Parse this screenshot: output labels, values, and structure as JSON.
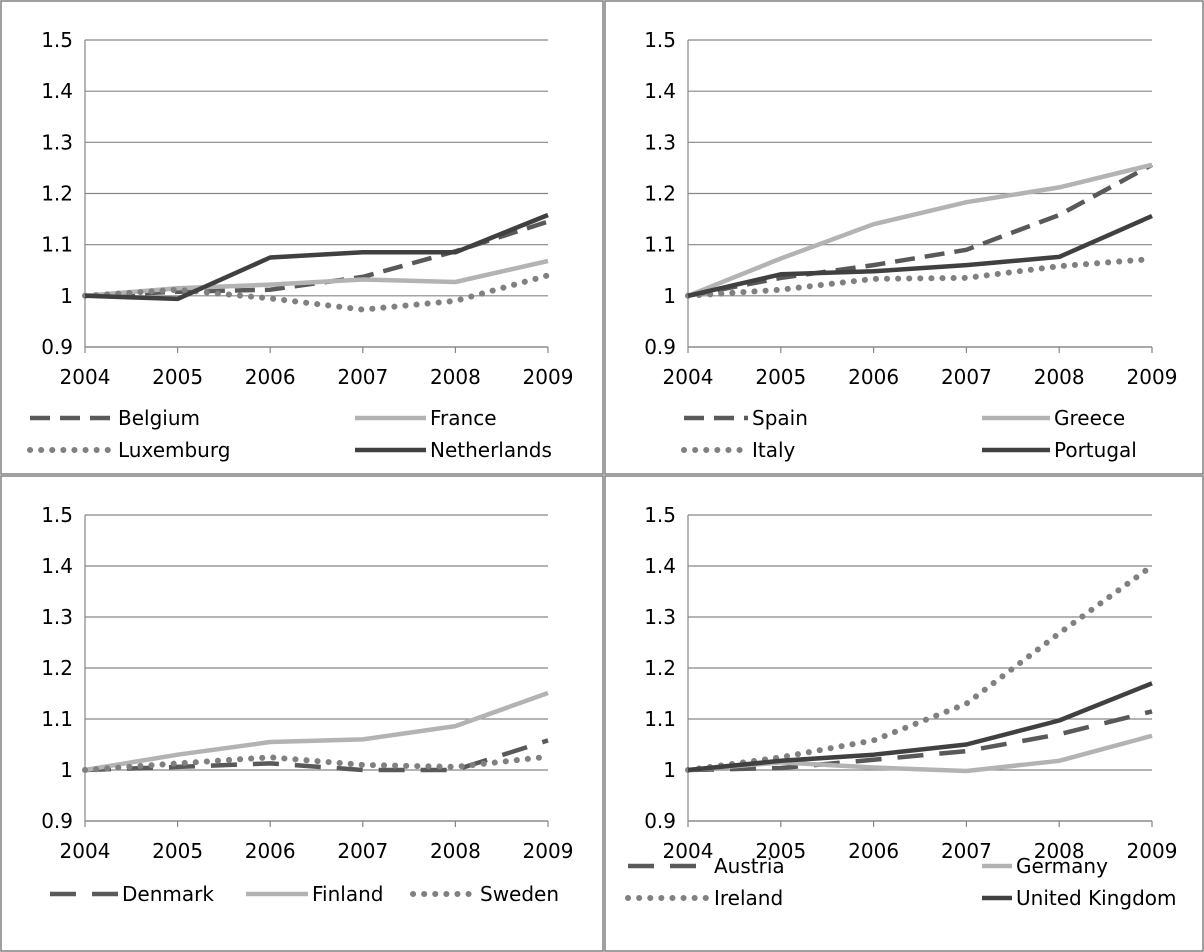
{
  "chart_data": [
    {
      "type": "line",
      "x": [
        "2004",
        "2005",
        "2006",
        "2007",
        "2008",
        "2009"
      ],
      "ylim": [
        0.9,
        1.5
      ],
      "yticks": [
        "0.9",
        "1",
        "1.1",
        "1.2",
        "1.3",
        "1.4",
        "1.5"
      ],
      "grid": true,
      "legend_position": "bottom",
      "legend_columns": 2,
      "series": [
        {
          "name": "Belgium",
          "style": "dashed",
          "color": "#595959",
          "values": [
            1.0,
            1.008,
            1.012,
            1.037,
            1.087,
            1.145
          ]
        },
        {
          "name": "France",
          "style": "solid",
          "color": "#b3b3b3",
          "values": [
            1.0,
            1.015,
            1.022,
            1.032,
            1.027,
            1.068
          ]
        },
        {
          "name": "Luxemburg",
          "style": "dotted",
          "color": "#808080",
          "values": [
            1.0,
            1.012,
            0.995,
            0.973,
            0.99,
            1.04
          ]
        },
        {
          "name": "Netherlands",
          "style": "solid",
          "color": "#404040",
          "values": [
            1.0,
            0.994,
            1.075,
            1.085,
            1.085,
            1.158
          ]
        }
      ]
    },
    {
      "type": "line",
      "x": [
        "2004",
        "2005",
        "2006",
        "2007",
        "2008",
        "2009"
      ],
      "ylim": [
        0.9,
        1.5
      ],
      "yticks": [
        "0.9",
        "1",
        "1.1",
        "1.2",
        "1.3",
        "1.4",
        "1.5"
      ],
      "grid": true,
      "legend_position": "bottom",
      "legend_columns": 2,
      "series": [
        {
          "name": "Spain",
          "style": "dashed",
          "color": "#595959",
          "values": [
            1.0,
            1.035,
            1.06,
            1.09,
            1.158,
            1.256
          ]
        },
        {
          "name": "Greece",
          "style": "solid",
          "color": "#b3b3b3",
          "values": [
            1.0,
            1.073,
            1.14,
            1.183,
            1.212,
            1.256
          ]
        },
        {
          "name": "Italy",
          "style": "dotted",
          "color": "#808080",
          "values": [
            1.0,
            1.012,
            1.033,
            1.035,
            1.058,
            1.072
          ]
        },
        {
          "name": "Portugal",
          "style": "solid",
          "color": "#404040",
          "values": [
            1.0,
            1.042,
            1.048,
            1.06,
            1.076,
            1.156
          ]
        }
      ]
    },
    {
      "type": "line",
      "x": [
        "2004",
        "2005",
        "2006",
        "2007",
        "2008",
        "2009"
      ],
      "ylim": [
        0.9,
        1.5
      ],
      "yticks": [
        "0.9",
        "1",
        "1.1",
        "1.2",
        "1.3",
        "1.4",
        "1.5"
      ],
      "grid": true,
      "legend_position": "bottom",
      "legend_columns": 3,
      "series": [
        {
          "name": "Denmark",
          "style": "longdash",
          "color": "#595959",
          "values": [
            1.0,
            1.006,
            1.013,
            1.0,
            1.0,
            1.058
          ]
        },
        {
          "name": "Finland",
          "style": "solid",
          "color": "#b3b3b3",
          "values": [
            1.0,
            1.03,
            1.055,
            1.06,
            1.086,
            1.151
          ]
        },
        {
          "name": "Sweden",
          "style": "dotted",
          "color": "#808080",
          "values": [
            1.0,
            1.013,
            1.025,
            1.01,
            1.006,
            1.026
          ]
        }
      ]
    },
    {
      "type": "line",
      "x": [
        "2004",
        "2005",
        "2006",
        "2007",
        "2008",
        "2009"
      ],
      "ylim": [
        0.9,
        1.5
      ],
      "yticks": [
        "0.9",
        "1",
        "1.1",
        "1.2",
        "1.3",
        "1.4",
        "1.5"
      ],
      "grid": true,
      "legend_position": "bottom",
      "legend_columns": 2,
      "series": [
        {
          "name": "Austria",
          "style": "longdash",
          "color": "#595959",
          "values": [
            1.0,
            1.004,
            1.02,
            1.037,
            1.07,
            1.115
          ]
        },
        {
          "name": "Germany",
          "style": "solid",
          "color": "#b3b3b3",
          "values": [
            1.0,
            1.015,
            1.005,
            0.998,
            1.018,
            1.067
          ]
        },
        {
          "name": "Ireland",
          "style": "dotted",
          "color": "#808080",
          "values": [
            1.0,
            1.025,
            1.058,
            1.13,
            1.268,
            1.4
          ]
        },
        {
          "name": "United Kingdom",
          "style": "solid",
          "color": "#404040",
          "values": [
            1.0,
            1.018,
            1.03,
            1.05,
            1.097,
            1.17
          ]
        }
      ]
    }
  ]
}
